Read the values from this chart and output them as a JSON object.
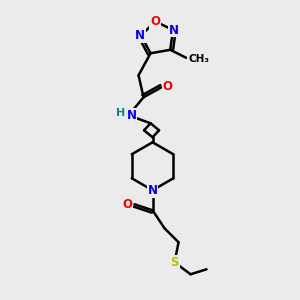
{
  "bg_color": "#ebebeb",
  "atom_colors": {
    "C": "#000000",
    "N": "#0000ee",
    "O": "#ee0000",
    "S": "#bbbb00",
    "H": "#008888"
  },
  "bond_color": "#000000",
  "bond_width": 1.8,
  "figsize": [
    3.0,
    3.0
  ],
  "dpi": 100
}
